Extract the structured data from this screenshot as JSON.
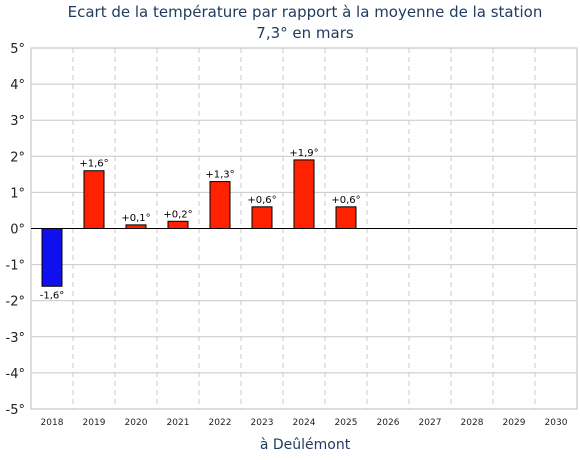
{
  "chart_data": {
    "type": "bar",
    "title": "Ecart de la température par rapport à la moyenne de la station",
    "subtitle": "7,3° en mars",
    "xlabel": "à Deûlémont",
    "categories": [
      "2018",
      "2019",
      "2020",
      "2021",
      "2022",
      "2023",
      "2024",
      "2025",
      "2026",
      "2027",
      "2028",
      "2029",
      "2030"
    ],
    "values": [
      -1.6,
      1.6,
      0.1,
      0.2,
      1.3,
      0.6,
      1.9,
      0.6,
      null,
      null,
      null,
      null,
      null
    ],
    "data_labels": [
      "-1,6°",
      "+1,6°",
      "+0,1°",
      "+0,2°",
      "+1,3°",
      "+0,6°",
      "+1,9°",
      "+0,6°",
      "",
      "",
      "",
      "",
      ""
    ],
    "ylim": [
      -5,
      5
    ],
    "yticks": [
      5,
      4,
      3,
      2,
      1,
      0,
      -1,
      -2,
      -3,
      -4,
      -5
    ],
    "ytick_labels": [
      "5°",
      "4°",
      "3°",
      "2°",
      "1°",
      "0°",
      "-1°",
      "-2°",
      "-3°",
      "-4°",
      "-5°"
    ],
    "grid": true,
    "colors": {
      "positive": "#ff2200",
      "negative": "#1010ee",
      "title": "#1f3a5f",
      "grid": "#c8c8c8"
    }
  }
}
